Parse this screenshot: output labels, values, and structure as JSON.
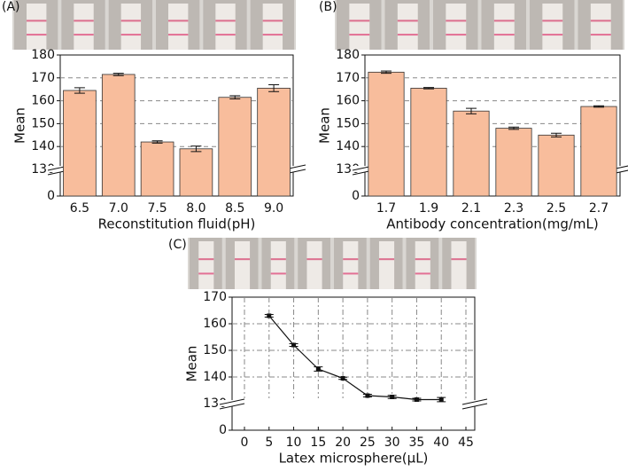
{
  "chart_data": [
    {
      "type": "bar",
      "label": "(A)",
      "ylabel": "Mean",
      "xlabel": "Reconstitution fluid(pH)",
      "categories": [
        "6.5",
        "7.0",
        "7.5",
        "8.0",
        "8.5",
        "9.0"
      ],
      "values": [
        164.5,
        171.5,
        142,
        139,
        161.5,
        165.5
      ],
      "errors": [
        1.2,
        0.5,
        0.5,
        1.2,
        0.7,
        1.5
      ],
      "color": "#f8bd9c",
      "ylim": [
        0,
        180
      ],
      "yticks": [
        0,
        130,
        140,
        150,
        160,
        170,
        180
      ],
      "axis_break": [
        0,
        130
      ],
      "grid": true
    },
    {
      "type": "bar",
      "label": "(B)",
      "ylabel": "Mean",
      "xlabel": "Antibody concentration(mg/mL)",
      "categories": [
        "1.7",
        "1.9",
        "2.1",
        "2.3",
        "2.5",
        "2.7"
      ],
      "values": [
        172.5,
        165.5,
        155.5,
        148,
        145,
        157.5
      ],
      "errors": [
        0.5,
        0.3,
        1.2,
        0.5,
        0.8,
        0.3
      ],
      "color": "#f8bd9c",
      "ylim": [
        0,
        180
      ],
      "yticks": [
        0,
        130,
        140,
        150,
        160,
        170,
        180
      ],
      "axis_break": [
        0,
        130
      ],
      "grid": true
    },
    {
      "type": "line",
      "label": "(C)",
      "ylabel": "Mean",
      "xlabel": "Latex microsphere(μL)",
      "x": [
        5,
        10,
        15,
        20,
        25,
        30,
        35,
        40
      ],
      "values": [
        163,
        152,
        143,
        139.5,
        133,
        132.5,
        131.5,
        131.5
      ],
      "errors": [
        0.5,
        0.5,
        0.8,
        0.4,
        0.5,
        0.6,
        0.5,
        0.8
      ],
      "color": "#111111",
      "xlim": [
        0,
        45
      ],
      "xticks": [
        0,
        5,
        10,
        15,
        20,
        25,
        30,
        35,
        40,
        45
      ],
      "ylim": [
        0,
        170
      ],
      "yticks": [
        0,
        130,
        140,
        150,
        160,
        170
      ],
      "axis_break": [
        0,
        130
      ],
      "grid": true
    }
  ]
}
